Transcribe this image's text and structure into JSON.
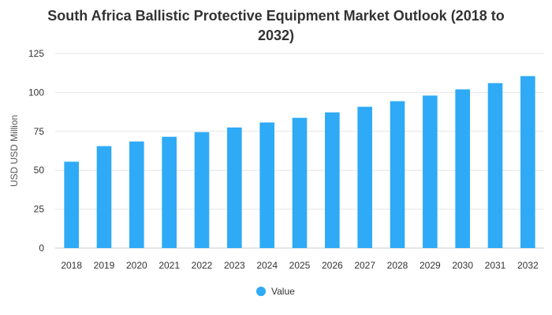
{
  "chart_data": {
    "type": "bar",
    "title_line1": "South Africa Ballistic Protective Equipment Market Outlook (2018 to",
    "title_line2": "2032)",
    "ylabel": "USD USD Million",
    "categories": [
      "2018",
      "2019",
      "2020",
      "2021",
      "2022",
      "2023",
      "2024",
      "2025",
      "2026",
      "2027",
      "2028",
      "2029",
      "2030",
      "2031",
      "2032"
    ],
    "series": [
      {
        "name": "Value",
        "values": [
          55.5,
          65.5,
          68.5,
          71.5,
          74.5,
          77.5,
          80.7,
          83.7,
          87.2,
          90.8,
          94.4,
          98.0,
          102.0,
          106.0,
          110.5
        ]
      }
    ],
    "ylim": [
      0,
      125
    ],
    "yticks": [
      0,
      25,
      50,
      75,
      100,
      125
    ],
    "grid": true,
    "legend_position": "bottom-center",
    "colors": {
      "bar": "#2eaaf6",
      "grid": "#e6e6e6",
      "axis": "#cccccc"
    }
  }
}
